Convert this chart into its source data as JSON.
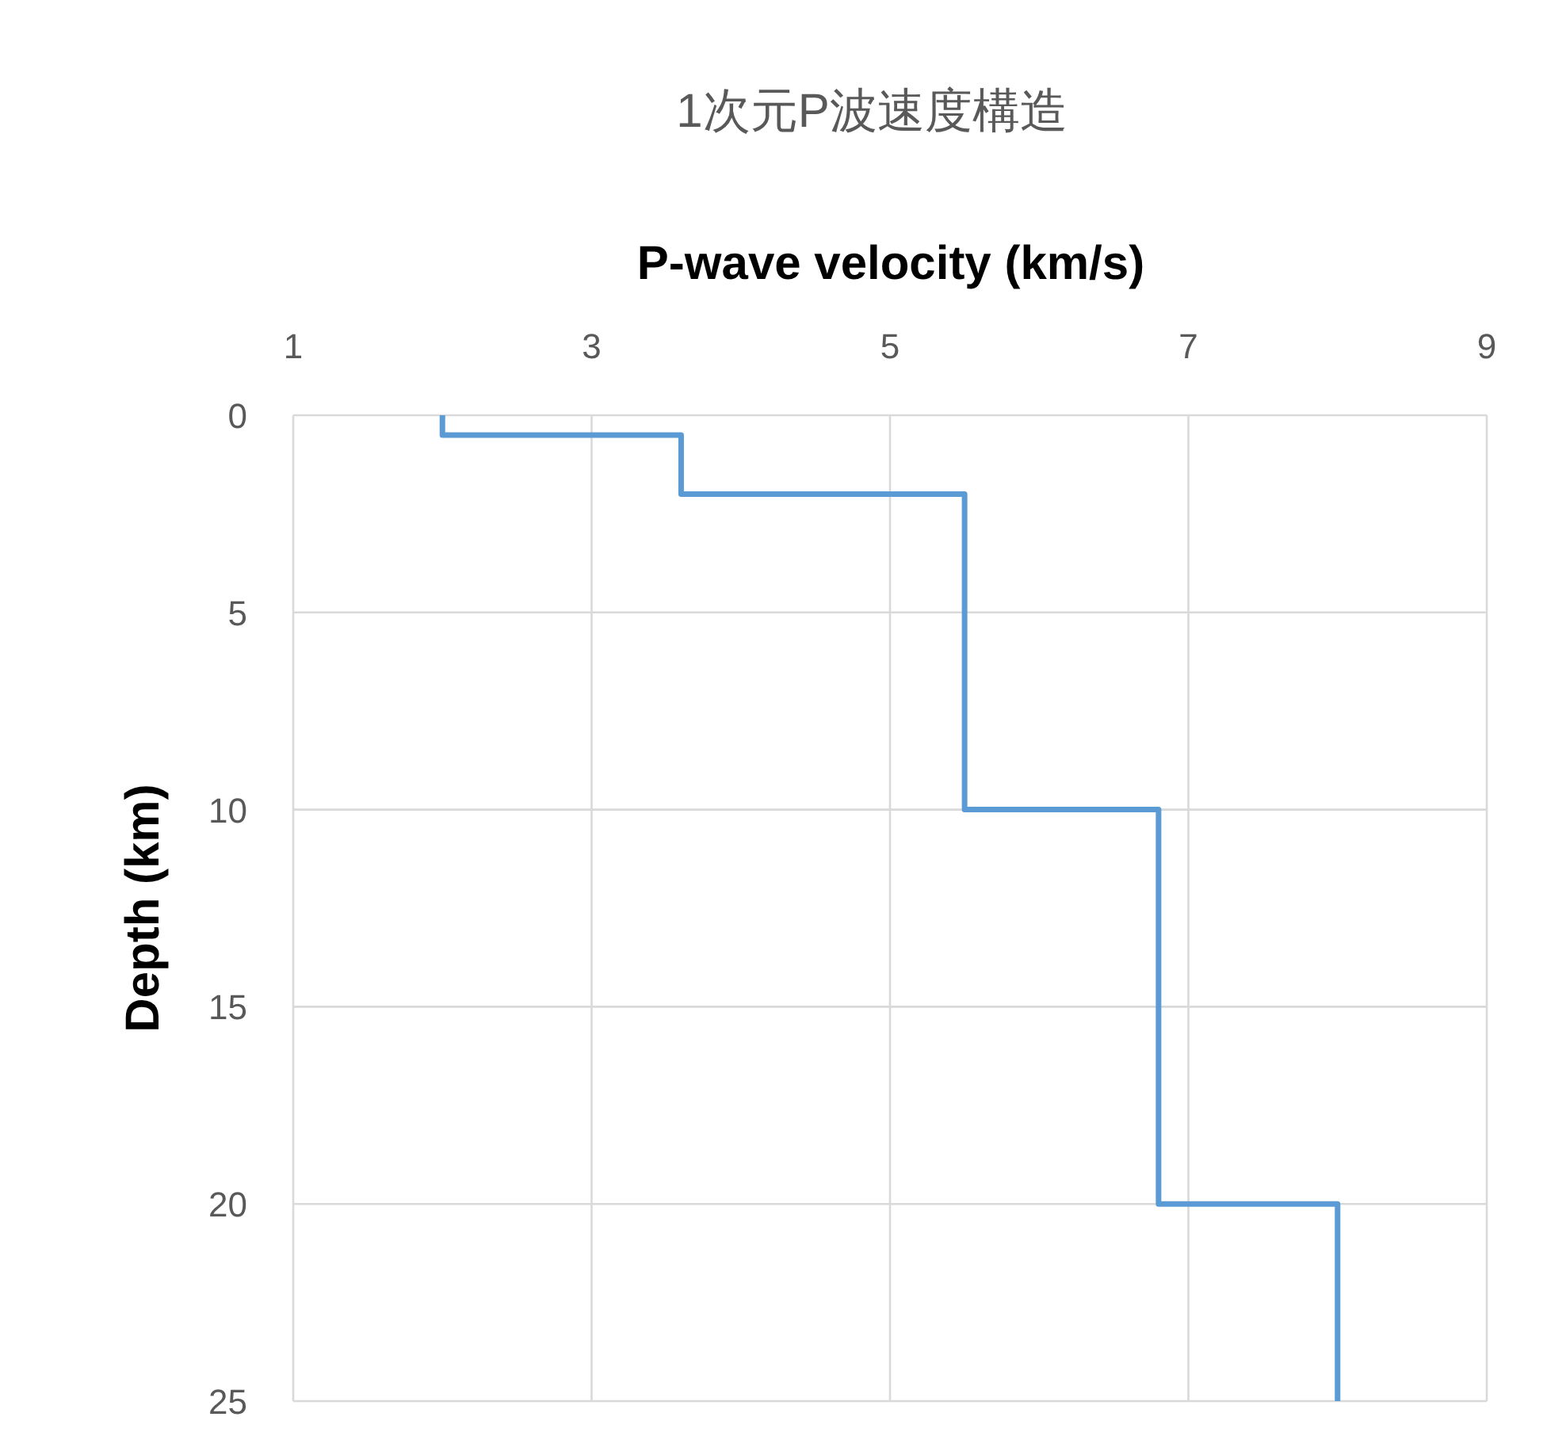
{
  "chart_data": {
    "type": "line",
    "title": "1次元P波速度構造",
    "xlabel": "P-wave velocity (km/s)",
    "ylabel": "Depth (km)",
    "series": [
      {
        "color": "#5b9bd5",
        "x": [
          2,
          2,
          3.6,
          3.6,
          5.5,
          5.5,
          6.8,
          6.8,
          8,
          8
        ],
        "values": [
          0,
          0.5,
          0.5,
          2,
          2,
          10,
          10,
          20,
          20,
          25
        ]
      }
    ],
    "xlim": [
      1,
      9
    ],
    "xticks": [
      1,
      3,
      5,
      7,
      9
    ],
    "ylim": [
      25,
      0
    ],
    "yticks": [
      0,
      5,
      10,
      15,
      20,
      25
    ],
    "grid": true,
    "line_style": "solid",
    "marker": "none"
  }
}
